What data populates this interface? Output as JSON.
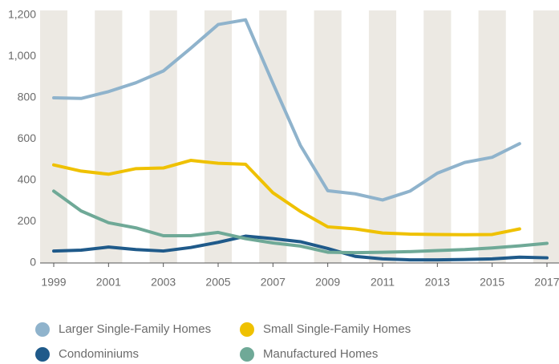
{
  "chart_data": {
    "type": "line",
    "x": [
      1999,
      2000,
      2001,
      2002,
      2003,
      2004,
      2005,
      2006,
      2007,
      2008,
      2009,
      2010,
      2011,
      2012,
      2013,
      2014,
      2015,
      2016,
      2017
    ],
    "xlim": [
      1999,
      2017
    ],
    "xticks": [
      1999,
      2001,
      2003,
      2005,
      2007,
      2009,
      2011,
      2013,
      2015,
      2017
    ],
    "ylim": [
      0,
      1200
    ],
    "yticks": [
      0,
      200,
      400,
      600,
      800,
      {
        "value": 1000,
        "label": "1,000"
      },
      {
        "value": 1200,
        "label": "1,200"
      }
    ],
    "series": [
      {
        "name": "Larger Single-Family Homes",
        "color": "#8fb3cc",
        "values": [
          800,
          797,
          830,
          873,
          930,
          1040,
          1155,
          1178,
          870,
          570,
          350,
          335,
          305,
          348,
          435,
          487,
          512,
          578,
          null
        ]
      },
      {
        "name": "Small Single-Family Homes",
        "color": "#efc100",
        "values": [
          475,
          445,
          430,
          457,
          460,
          497,
          483,
          478,
          340,
          250,
          175,
          165,
          145,
          140,
          138,
          137,
          138,
          165,
          null
        ]
      },
      {
        "name": "Condominiums",
        "color": "#1f5a8a",
        "values": [
          58,
          62,
          77,
          65,
          58,
          75,
          100,
          130,
          118,
          103,
          70,
          32,
          20,
          15,
          15,
          17,
          20,
          28,
          25
        ]
      },
      {
        "name": "Manufactured Homes",
        "color": "#6fa997",
        "values": [
          348,
          252,
          195,
          170,
          132,
          132,
          148,
          118,
          97,
          82,
          52,
          50,
          52,
          55,
          60,
          65,
          73,
          83,
          95
        ]
      }
    ]
  }
}
